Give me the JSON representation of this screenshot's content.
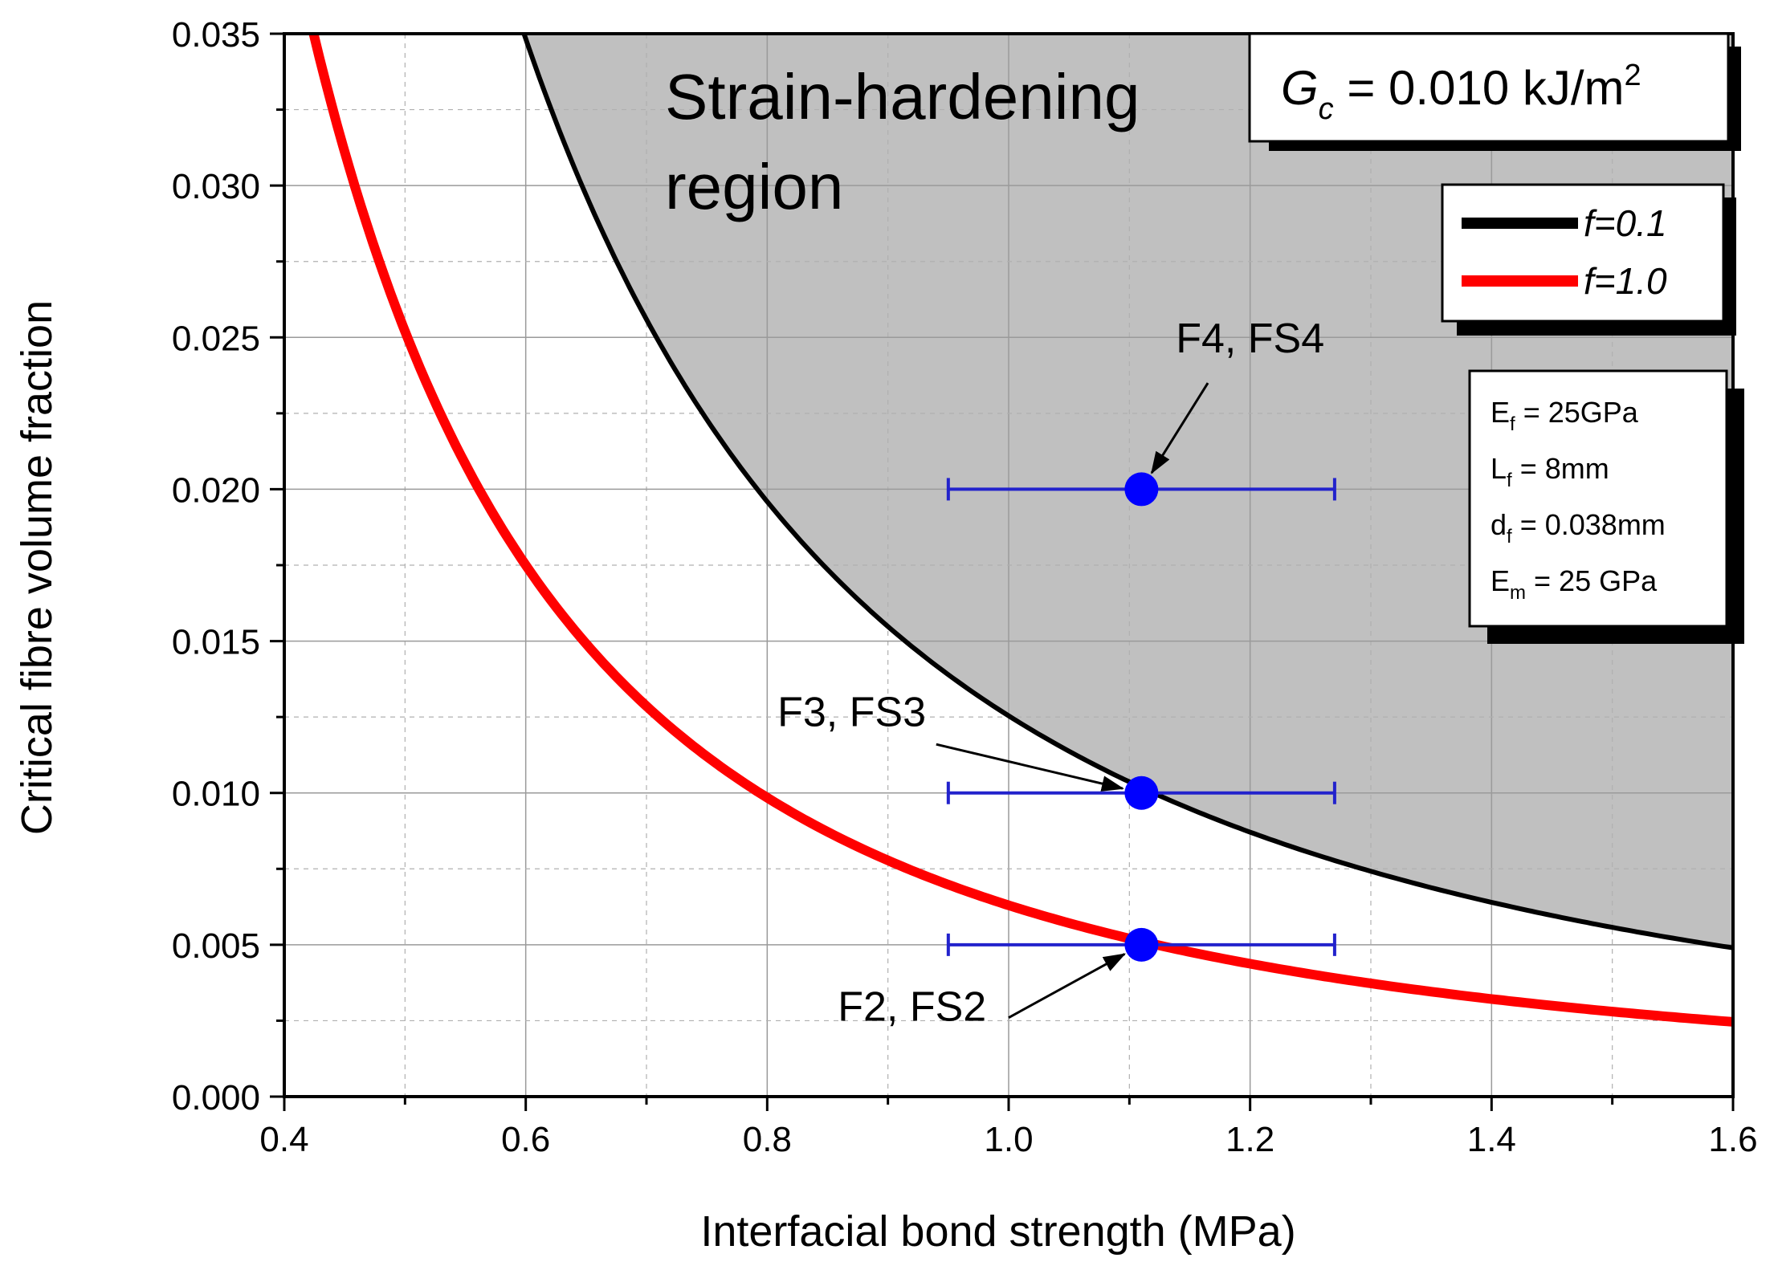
{
  "chart_data": {
    "type": "line",
    "title": "",
    "xlabel": "Interfacial bond strength (MPa)",
    "ylabel": "Critical fibre volume fraction",
    "xlim": [
      0.4,
      1.6
    ],
    "ylim": [
      0.0,
      0.035
    ],
    "x_ticks": [
      0.4,
      0.6,
      0.8,
      1.0,
      1.2,
      1.4,
      1.6
    ],
    "x_tick_labels": [
      "0.4",
      "0.6",
      "0.8",
      "1.0",
      "1.2",
      "1.4",
      "1.6"
    ],
    "y_ticks": [
      0.0,
      0.005,
      0.01,
      0.015,
      0.02,
      0.025,
      0.03,
      0.035
    ],
    "y_tick_labels": [
      "0.000",
      "0.005",
      "0.010",
      "0.015",
      "0.020",
      "0.025",
      "0.030",
      "0.035"
    ],
    "grid": true,
    "series": [
      {
        "name": "f=0.1",
        "color": "#000000",
        "model": "y = k / x^2",
        "k": 0.01254,
        "x": [
          0.65,
          0.7,
          0.8,
          0.9,
          1.0,
          1.1,
          1.2,
          1.3,
          1.4,
          1.5,
          1.6
        ],
        "values": [
          0.0297,
          0.0256,
          0.0196,
          0.0155,
          0.0125,
          0.0104,
          0.0087,
          0.0074,
          0.0064,
          0.0056,
          0.0049
        ]
      },
      {
        "name": "f=1.0",
        "color": "#ff0000",
        "model": "y = k / x^2",
        "k": 0.0063,
        "x": [
          0.43,
          0.5,
          0.6,
          0.7,
          0.8,
          0.9,
          1.0,
          1.1,
          1.2,
          1.3,
          1.4,
          1.5,
          1.6
        ],
        "values": [
          0.0341,
          0.0252,
          0.0175,
          0.0129,
          0.0098,
          0.0078,
          0.0063,
          0.0052,
          0.0044,
          0.0037,
          0.0032,
          0.0028,
          0.0025
        ]
      }
    ],
    "region": {
      "label_line1": "Strain-hardening",
      "label_line2": "region",
      "bounded_by": "f=0.1",
      "color": "#c0c0c0"
    },
    "points": [
      {
        "label": "F4, FS4",
        "x": 1.11,
        "y": 0.02,
        "xerr_low": 0.95,
        "xerr_high": 1.27,
        "label_x": 1.2,
        "label_y": 0.0245,
        "arrow_from_x": 1.165,
        "arrow_from_y": 0.0235
      },
      {
        "label": "F3, FS3",
        "x": 1.11,
        "y": 0.01,
        "xerr_low": 0.95,
        "xerr_high": 1.27,
        "label_x": 0.87,
        "label_y": 0.0122,
        "arrow_from_x": 0.94,
        "arrow_from_y": 0.0116
      },
      {
        "label": "F2, FS2",
        "x": 1.11,
        "y": 0.005,
        "xerr_low": 0.95,
        "xerr_high": 1.27,
        "label_x": 0.92,
        "label_y": 0.0025,
        "arrow_from_x": 1.0,
        "arrow_from_y": 0.0026
      }
    ],
    "point_color": "#0000ff",
    "errorbar_color": "#2222cc",
    "legend": {
      "placement": "top-right",
      "entries": [
        {
          "label": "f=0.1",
          "color": "#000000"
        },
        {
          "label": "f=1.0",
          "color": "#ff0000"
        }
      ]
    },
    "gc_annotation": {
      "symbol": "G",
      "subscript": "c",
      "value_text": " = 0.010 kJ/m",
      "superscript": "2"
    },
    "parameters": [
      {
        "symbol": "E",
        "subscript": "f",
        "value": " = 25GPa"
      },
      {
        "symbol": "L",
        "subscript": "f",
        "value": " = 8mm"
      },
      {
        "symbol": "d",
        "subscript": "f",
        "value": " = 0.038mm"
      },
      {
        "symbol": "E",
        "subscript": "m",
        "value": " = 25 GPa"
      }
    ]
  }
}
